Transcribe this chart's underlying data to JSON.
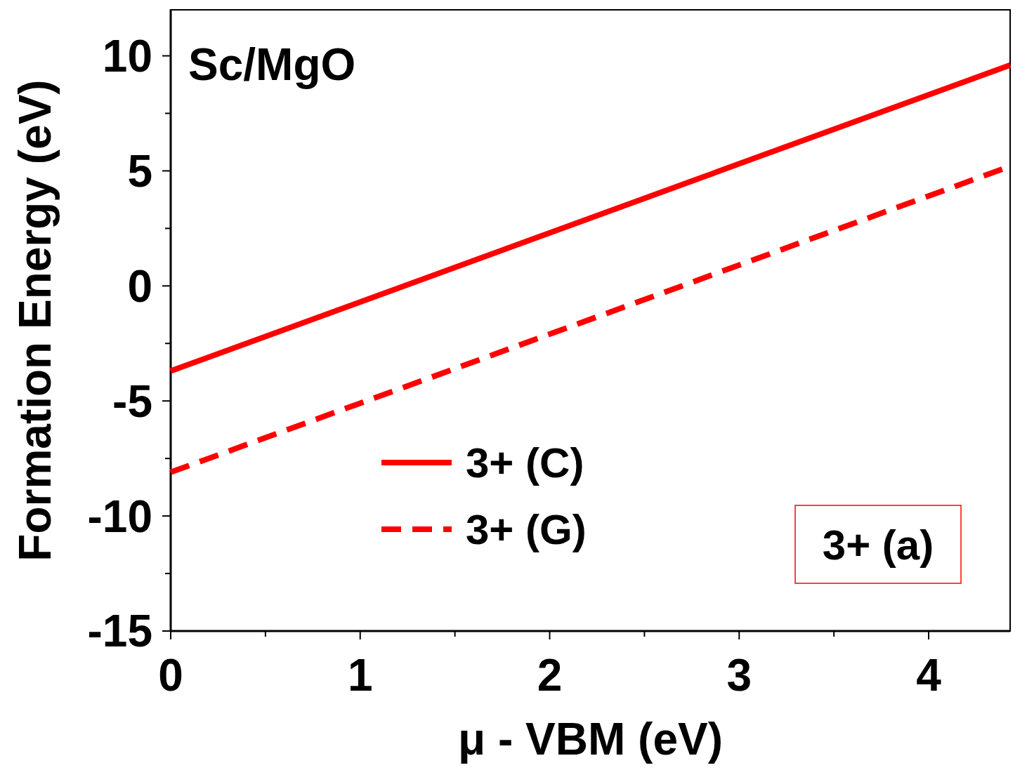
{
  "chart_data": {
    "type": "line",
    "xlabel": "μ - VBM (eV)",
    "ylabel": "Formation Energy (eV)",
    "annotations": [
      "Sc/MgO",
      "3+ (a)"
    ],
    "xlim": [
      0,
      4.43
    ],
    "ylim": [
      -15,
      12
    ],
    "xticks": [
      0,
      {
        "value": 0.5,
        "label": null
      },
      1,
      {
        "value": 1.5,
        "label": null
      },
      2,
      {
        "value": 2.5,
        "label": null
      },
      3,
      {
        "value": 3.5,
        "label": null
      },
      4
    ],
    "yticks": [
      -15,
      {
        "value": -12.5,
        "label": null
      },
      -10,
      {
        "value": -7.5,
        "label": null
      },
      -5,
      {
        "value": -2.5,
        "label": null
      },
      0,
      {
        "value": 2.5,
        "label": null
      },
      5,
      {
        "value": 7.5,
        "label": null
      },
      10
    ],
    "legend": "bottom left",
    "x": [
      0,
      4.43
    ],
    "grid": false,
    "marker": "none",
    "series": [
      {
        "name": "3+ (C)",
        "color": "#ff0000",
        "line_style": "solid",
        "values": [
          -3.7,
          9.6
        ]
      },
      {
        "name": "3+ (G)",
        "color": "#ff0000",
        "line_style": "dashed",
        "values": [
          -8.1,
          5.2
        ]
      }
    ]
  }
}
